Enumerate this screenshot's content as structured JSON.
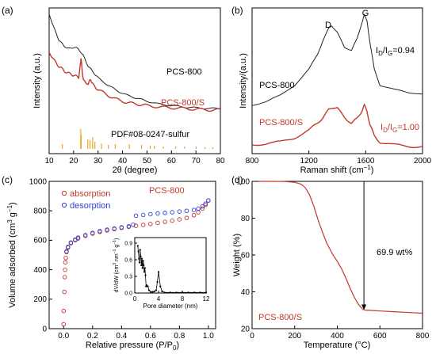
{
  "chart_data": [
    {
      "panel": "(a)",
      "type": "line",
      "xlabel": "2θ (degree)",
      "ylabel": "Intensity (a.u.)",
      "xlim": [
        10,
        80
      ],
      "xticks": [
        10,
        20,
        30,
        40,
        50,
        60,
        70,
        80
      ],
      "series": [
        {
          "name": "PCS-800",
          "color": "#222222",
          "x": [
            10,
            12,
            14,
            16,
            18,
            20,
            22,
            24,
            26,
            28,
            30,
            34,
            38,
            42,
            46,
            50,
            55,
            60,
            65,
            70,
            75,
            80
          ],
          "y": [
            96,
            86,
            78,
            74,
            72,
            73,
            72,
            67,
            60,
            56,
            52,
            47,
            43,
            40,
            38,
            36,
            34,
            33,
            32,
            31.5,
            31,
            31
          ]
        },
        {
          "name": "PCS-800/S",
          "color": "#c0392b",
          "x": [
            10,
            12,
            14,
            16,
            18,
            20,
            22,
            22.5,
            23,
            23.5,
            24,
            26,
            27,
            28,
            30,
            34,
            38,
            42,
            46,
            50,
            55,
            60,
            65,
            70,
            75,
            80
          ],
          "y": [
            70,
            64,
            60,
            57,
            55,
            54,
            52,
            57,
            66,
            57,
            50,
            48,
            51,
            47,
            44,
            40,
            37,
            35,
            34,
            33,
            32,
            31.5,
            31,
            30.5,
            30,
            30
          ]
        }
      ],
      "reference": {
        "name": "PDF#08-0247-sulfur",
        "color": "#e8a825",
        "peaks": [
          {
            "x": 15.4,
            "h": 6
          },
          {
            "x": 22.9,
            "h": 25
          },
          {
            "x": 23.1,
            "h": 18
          },
          {
            "x": 25.8,
            "h": 12
          },
          {
            "x": 26.7,
            "h": 11
          },
          {
            "x": 27.8,
            "h": 15
          },
          {
            "x": 28.7,
            "h": 9
          },
          {
            "x": 31.4,
            "h": 7
          },
          {
            "x": 34.2,
            "h": 5
          },
          {
            "x": 37.0,
            "h": 6
          },
          {
            "x": 42.8,
            "h": 6
          },
          {
            "x": 47.8,
            "h": 5
          },
          {
            "x": 51.3,
            "h": 4
          },
          {
            "x": 53.0,
            "h": 4
          },
          {
            "x": 56.7,
            "h": 3
          },
          {
            "x": 61.8,
            "h": 3
          },
          {
            "x": 65.4,
            "h": 3
          },
          {
            "x": 70.1,
            "h": 3
          },
          {
            "x": 73.7,
            "h": 2
          },
          {
            "x": 76.9,
            "h": 2
          }
        ]
      }
    },
    {
      "panel": "(b)",
      "type": "line",
      "xlabel": "Raman shift (cm⁻¹)",
      "ylabel": "Intensity/(a.u.)",
      "xlim": [
        800,
        2000
      ],
      "xticks": [
        800,
        1200,
        1600,
        2000
      ],
      "peak_labels": [
        {
          "text": "D",
          "x": 1350
        },
        {
          "text": "G",
          "x": 1590
        }
      ],
      "annotations": [
        "ID/IG=0.94",
        "ID/IG=1.00"
      ],
      "series": [
        {
          "name": "PCS-800",
          "color": "#222222",
          "ratio": "ID/IG=0.94",
          "x": [
            800,
            900,
            1000,
            1100,
            1200,
            1260,
            1300,
            1340,
            1360,
            1400,
            1450,
            1500,
            1540,
            1570,
            1590,
            1610,
            1630,
            1660,
            1700,
            1800,
            1900,
            2000
          ],
          "y": [
            33,
            36,
            40,
            47,
            58,
            68,
            78,
            86,
            88,
            83,
            73,
            71,
            79,
            89,
            95,
            91,
            76,
            58,
            47,
            44,
            42,
            41
          ]
        },
        {
          "name": "PCS-800/S",
          "color": "#c0392b",
          "ratio": "ID/IG=1.00",
          "x": [
            800,
            900,
            1000,
            1100,
            1200,
            1260,
            1300,
            1340,
            1370,
            1400,
            1450,
            1500,
            1540,
            1570,
            1590,
            1610,
            1630,
            1660,
            1700,
            1800,
            1900,
            2000
          ],
          "y": [
            6,
            7,
            8,
            11,
            16,
            21,
            25,
            30,
            32,
            31,
            25,
            21,
            24,
            29,
            33,
            29,
            20,
            12,
            8,
            6,
            5,
            5
          ]
        }
      ]
    },
    {
      "panel": "(c)",
      "type": "scatter",
      "title": "PCS-800",
      "xlabel": "Relative pressure (P/P₀)",
      "ylabel": "Volume adsorbed (cm³ g⁻¹)",
      "xlim": [
        -0.1,
        1.05
      ],
      "ylim": [
        0,
        1000
      ],
      "xticks": [
        0.0,
        0.2,
        0.4,
        0.6,
        0.8,
        1.0
      ],
      "yticks": [
        0,
        200,
        400,
        600,
        800,
        1000
      ],
      "series": [
        {
          "name": "absorption",
          "color": "#c0392b",
          "x": [
            0.0,
            0.0,
            0.005,
            0.008,
            0.01,
            0.012,
            0.015,
            0.02,
            0.03,
            0.05,
            0.08,
            0.1,
            0.15,
            0.2,
            0.25,
            0.3,
            0.35,
            0.4,
            0.45,
            0.5,
            0.55,
            0.6,
            0.65,
            0.7,
            0.75,
            0.8,
            0.85,
            0.9,
            0.93,
            0.96,
            0.98,
            1.0
          ],
          "y": [
            30,
            120,
            250,
            350,
            400,
            450,
            480,
            520,
            550,
            580,
            600,
            612,
            630,
            645,
            657,
            667,
            676,
            684,
            691,
            698,
            704,
            711,
            718,
            725,
            733,
            742,
            752,
            770,
            790,
            815,
            840,
            870
          ]
        },
        {
          "name": "desorption",
          "color": "#2d3fd8",
          "x": [
            1.0,
            0.98,
            0.96,
            0.93,
            0.9,
            0.85,
            0.8,
            0.75,
            0.7,
            0.65,
            0.6,
            0.55,
            0.5,
            0.48,
            0.45,
            0.4,
            0.35,
            0.3,
            0.25,
            0.2,
            0.15,
            0.1,
            0.08,
            0.05,
            0.03,
            0.02
          ],
          "y": [
            870,
            848,
            830,
            815,
            806,
            800,
            795,
            790,
            786,
            782,
            777,
            772,
            767,
            705,
            695,
            688,
            680,
            672,
            662,
            650,
            635,
            618,
            605,
            585,
            555,
            525
          ]
        }
      ],
      "inset": {
        "xlabel": "Pore diameter (nm)",
        "ylabel": "dV/dW (cm³ nm⁻¹ g⁻¹)",
        "xlim": [
          0,
          12
        ],
        "ylim": [
          0,
          1.0
        ],
        "xticks": [
          0,
          4,
          8,
          12
        ],
        "yticks": [
          0.0,
          0.3,
          0.6,
          0.9
        ],
        "x": [
          0.5,
          0.6,
          0.7,
          0.8,
          0.9,
          1.0,
          1.1,
          1.2,
          1.3,
          1.4,
          1.5,
          1.6,
          1.7,
          1.8,
          1.9,
          2.0,
          2.2,
          2.4,
          2.7,
          3.0,
          3.3,
          3.6,
          3.8,
          4.0,
          4.3,
          4.6,
          5.0,
          6,
          7,
          8,
          9,
          10,
          11,
          12
        ],
        "y": [
          0.85,
          0.75,
          0.62,
          0.55,
          0.78,
          0.66,
          0.5,
          0.62,
          0.45,
          0.58,
          0.5,
          0.38,
          0.45,
          0.32,
          0.12,
          0.14,
          0.12,
          0.05,
          0.02,
          0.02,
          0.03,
          0.05,
          0.2,
          0.38,
          0.12,
          0.03,
          0.01,
          0.01,
          0.01,
          0.01,
          0.01,
          0.01,
          0.01,
          0.01
        ]
      }
    },
    {
      "panel": "(d)",
      "type": "line",
      "xlabel": "Temperature (°C)",
      "ylabel": "Weight (%)",
      "xlim": [
        0,
        800
      ],
      "ylim": [
        20,
        100
      ],
      "xticks": [
        0,
        200,
        400,
        600,
        800
      ],
      "yticks": [
        20,
        40,
        60,
        80,
        100
      ],
      "annotation": "69.9 wt%",
      "annotation_arrow_x": 525,
      "annotation_arrow_y": [
        100,
        30.1
      ],
      "series": [
        {
          "name": "PCS-800/S",
          "color": "#c0392b",
          "x": [
            30,
            100,
            150,
            200,
            230,
            250,
            270,
            290,
            310,
            330,
            350,
            380,
            400,
            420,
            440,
            460,
            480,
            500,
            520,
            530,
            560,
            600,
            650,
            700,
            750,
            800
          ],
          "y": [
            100,
            100,
            99.9,
            99.5,
            98.5,
            96.5,
            92.5,
            86.5,
            79,
            72.5,
            66.5,
            60,
            56.5,
            52.5,
            47.5,
            42,
            37,
            33,
            30.5,
            30.1,
            29.9,
            29.6,
            29.3,
            29,
            28.7,
            28.4
          ]
        }
      ],
      "reference_line_y": 100
    }
  ]
}
